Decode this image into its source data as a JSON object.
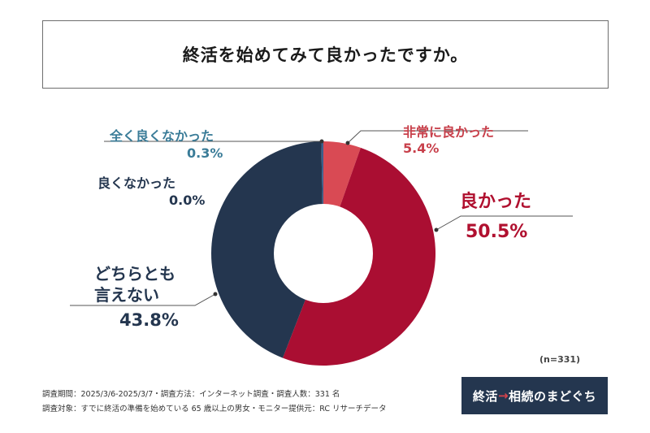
{
  "title": "終活を始めてみて良かったですか。",
  "chart_data": {
    "type": "pie",
    "donut": true,
    "series": [
      {
        "name": "非常に良かった",
        "value": 5.4,
        "value_label": "5.4%",
        "color": "#d94a54"
      },
      {
        "name": "良かった",
        "value": 50.5,
        "value_label": "50.5%",
        "color": "#aa0e32"
      },
      {
        "name": "どちらとも言えない",
        "name_lines": [
          "どちらとも",
          "言えない"
        ],
        "value": 43.8,
        "value_label": "43.8%",
        "color": "#24364f"
      },
      {
        "name": "良くなかった",
        "value": 0.0,
        "value_label": "0.0%",
        "color": "#24364f"
      },
      {
        "name": "全く良くなかった",
        "value": 0.3,
        "value_label": "0.3%",
        "color": "#3b5f8c"
      }
    ],
    "n_label": "(n=331)"
  },
  "footer": {
    "line1": "調査期間：2025/3/6-2025/3/7・調査方法：インターネット調査・調査人数：331 名",
    "line2": "調査対象：すでに終活の準備を始めている 65 歳以上の男女・モニター提供元：RC リサーチデータ"
  },
  "logo": {
    "part1": "終活",
    "arrow": "→",
    "part2": "相続のまどぐち"
  }
}
